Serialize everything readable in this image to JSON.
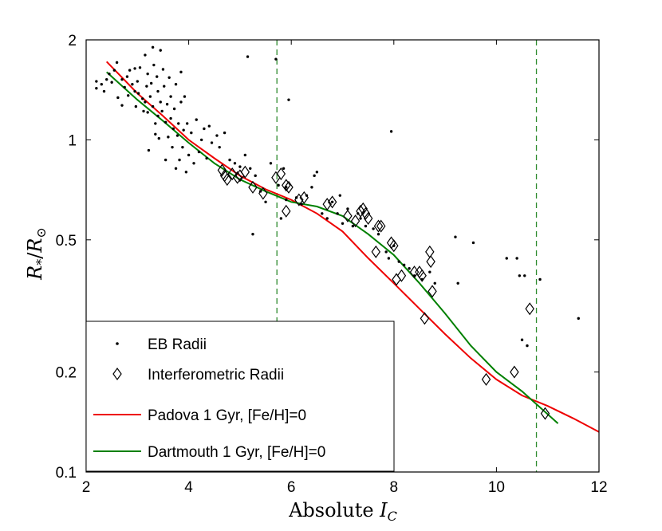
{
  "chart_data": {
    "type": "scatter",
    "xlabel": "Absolute I_C",
    "ylabel": "R_*/R_⊙",
    "xlim": [
      2,
      12
    ],
    "ylim": [
      0.1,
      2
    ],
    "yscale": "log",
    "x_ticks": [
      "2",
      "4",
      "6",
      "8",
      "10",
      "12"
    ],
    "y_ticks": [
      {
        "value": 0.1,
        "label": "0.1"
      },
      {
        "value": 0.2,
        "label": "0.2"
      },
      {
        "value": 0.5,
        "label": "0.5"
      },
      {
        "value": 1,
        "label": "1"
      },
      {
        "value": 2,
        "label": "2"
      }
    ],
    "vlines": [
      5.72,
      10.78
    ],
    "legend_position": "bottom-left",
    "series": [
      {
        "name": "EB Radii",
        "kind": "dots",
        "color": "#000000",
        "points": [
          [
            2.2,
            1.43
          ],
          [
            2.2,
            1.5
          ],
          [
            2.3,
            1.47
          ],
          [
            2.35,
            1.4
          ],
          [
            2.4,
            1.52
          ],
          [
            2.45,
            1.58
          ],
          [
            2.5,
            1.49
          ],
          [
            2.55,
            1.62
          ],
          [
            2.6,
            1.71
          ],
          [
            2.62,
            1.34
          ],
          [
            2.7,
            1.52
          ],
          [
            2.7,
            1.27
          ],
          [
            2.75,
            1.44
          ],
          [
            2.8,
            1.55
          ],
          [
            2.82,
            1.36
          ],
          [
            2.85,
            1.62
          ],
          [
            2.9,
            1.47
          ],
          [
            2.95,
            1.4
          ],
          [
            2.95,
            1.64
          ],
          [
            2.97,
            1.26
          ],
          [
            3.0,
            1.5
          ],
          [
            3.02,
            1.38
          ],
          [
            3.05,
            1.65
          ],
          [
            3.1,
            1.33
          ],
          [
            3.12,
            1.22
          ],
          [
            3.15,
            1.3
          ],
          [
            3.15,
            1.8
          ],
          [
            3.18,
            1.45
          ],
          [
            3.2,
            1.58
          ],
          [
            3.2,
            1.21
          ],
          [
            3.22,
            0.93
          ],
          [
            3.25,
            1.35
          ],
          [
            3.27,
            1.48
          ],
          [
            3.3,
            1.26
          ],
          [
            3.3,
            1.9
          ],
          [
            3.32,
            1.68
          ],
          [
            3.35,
            1.04
          ],
          [
            3.35,
            1.12
          ],
          [
            3.38,
            1.55
          ],
          [
            3.4,
            1.4
          ],
          [
            3.4,
            1.18
          ],
          [
            3.42,
            1.01
          ],
          [
            3.45,
            1.3
          ],
          [
            3.45,
            1.86
          ],
          [
            3.48,
            1.22
          ],
          [
            3.5,
            1.63
          ],
          [
            3.52,
            1.45
          ],
          [
            3.55,
            1.13
          ],
          [
            3.55,
            0.87
          ],
          [
            3.58,
            1.28
          ],
          [
            3.6,
            1.02
          ],
          [
            3.62,
            1.54
          ],
          [
            3.65,
            1.16
          ],
          [
            3.65,
            1.35
          ],
          [
            3.68,
            0.95
          ],
          [
            3.7,
            1.08
          ],
          [
            3.72,
            1.24
          ],
          [
            3.75,
            1.47
          ],
          [
            3.75,
            0.82
          ],
          [
            3.78,
            1.03
          ],
          [
            3.8,
            1.12
          ],
          [
            3.82,
            0.87
          ],
          [
            3.85,
            1.3
          ],
          [
            3.85,
            1.6
          ],
          [
            3.88,
            0.95
          ],
          [
            3.9,
            1.07
          ],
          [
            3.92,
            1.35
          ],
          [
            3.95,
            0.8
          ],
          [
            3.97,
            1.12
          ],
          [
            4.0,
            0.9
          ],
          [
            4.05,
            1.05
          ],
          [
            4.1,
            0.85
          ],
          [
            4.15,
            1.15
          ],
          [
            4.2,
            0.92
          ],
          [
            4.25,
            1.0
          ],
          [
            4.3,
            1.08
          ],
          [
            4.35,
            0.88
          ],
          [
            4.4,
            1.1
          ],
          [
            4.45,
            0.98
          ],
          [
            4.55,
            1.03
          ],
          [
            4.6,
            0.95
          ],
          [
            4.7,
            1.05
          ],
          [
            4.8,
            0.87
          ],
          [
            4.9,
            0.85
          ],
          [
            5.0,
            0.83
          ],
          [
            5.1,
            0.9
          ],
          [
            5.15,
            1.78
          ],
          [
            5.2,
            0.82
          ],
          [
            5.25,
            0.52
          ],
          [
            5.3,
            0.78
          ],
          [
            5.4,
            0.7
          ],
          [
            5.5,
            0.65
          ],
          [
            5.6,
            0.85
          ],
          [
            5.7,
            1.75
          ],
          [
            5.75,
            0.73
          ],
          [
            5.8,
            0.58
          ],
          [
            5.85,
            0.82
          ],
          [
            5.9,
            0.66
          ],
          [
            5.9,
            0.72
          ],
          [
            5.95,
            1.32
          ],
          [
            6.1,
            0.67
          ],
          [
            6.2,
            0.64
          ],
          [
            6.3,
            0.68
          ],
          [
            6.4,
            0.72
          ],
          [
            6.45,
            0.78
          ],
          [
            6.5,
            0.8
          ],
          [
            6.6,
            0.6
          ],
          [
            6.7,
            0.58
          ],
          [
            6.8,
            0.65
          ],
          [
            6.9,
            0.6
          ],
          [
            6.95,
            0.68
          ],
          [
            7.0,
            0.56
          ],
          [
            7.1,
            0.62
          ],
          [
            7.2,
            0.55
          ],
          [
            7.3,
            0.6
          ],
          [
            7.35,
            0.58
          ],
          [
            7.45,
            0.55
          ],
          [
            7.6,
            0.54
          ],
          [
            7.7,
            0.52
          ],
          [
            7.85,
            0.46
          ],
          [
            7.9,
            0.44
          ],
          [
            7.95,
            1.06
          ],
          [
            8.0,
            0.48
          ],
          [
            8.1,
            0.43
          ],
          [
            8.2,
            0.42
          ],
          [
            8.3,
            0.41
          ],
          [
            8.4,
            0.39
          ],
          [
            8.55,
            0.38
          ],
          [
            8.7,
            0.4
          ],
          [
            8.8,
            0.37
          ],
          [
            9.2,
            0.51
          ],
          [
            9.25,
            0.37
          ],
          [
            9.55,
            0.49
          ],
          [
            10.2,
            0.44
          ],
          [
            10.4,
            0.44
          ],
          [
            10.45,
            0.39
          ],
          [
            10.5,
            0.25
          ],
          [
            10.55,
            0.39
          ],
          [
            10.6,
            0.24
          ],
          [
            10.85,
            0.38
          ],
          [
            11.6,
            0.29
          ]
        ]
      },
      {
        "name": "Interferometric Radii",
        "kind": "diamonds",
        "color": "#000000",
        "points": [
          [
            4.65,
            0.81
          ],
          [
            4.7,
            0.78
          ],
          [
            4.75,
            0.76
          ],
          [
            4.85,
            0.79
          ],
          [
            4.95,
            0.77
          ],
          [
            5.0,
            0.78
          ],
          [
            5.1,
            0.8
          ],
          [
            5.25,
            0.72
          ],
          [
            5.45,
            0.69
          ],
          [
            5.7,
            0.77
          ],
          [
            5.8,
            0.79
          ],
          [
            5.9,
            0.73
          ],
          [
            5.95,
            0.72
          ],
          [
            5.9,
            0.61
          ],
          [
            6.15,
            0.66
          ],
          [
            6.25,
            0.67
          ],
          [
            6.7,
            0.64
          ],
          [
            6.8,
            0.65
          ],
          [
            7.1,
            0.59
          ],
          [
            7.25,
            0.57
          ],
          [
            7.35,
            0.61
          ],
          [
            7.4,
            0.62
          ],
          [
            7.45,
            0.6
          ],
          [
            7.5,
            0.58
          ],
          [
            7.7,
            0.55
          ],
          [
            7.75,
            0.55
          ],
          [
            7.65,
            0.46
          ],
          [
            7.95,
            0.49
          ],
          [
            8.0,
            0.48
          ],
          [
            8.05,
            0.38
          ],
          [
            8.15,
            0.39
          ],
          [
            8.4,
            0.4
          ],
          [
            8.5,
            0.4
          ],
          [
            8.55,
            0.39
          ],
          [
            8.7,
            0.46
          ],
          [
            8.72,
            0.43
          ],
          [
            8.75,
            0.35
          ],
          [
            8.6,
            0.29
          ],
          [
            9.8,
            0.19
          ],
          [
            10.35,
            0.2
          ],
          [
            10.65,
            0.31
          ],
          [
            10.95,
            0.15
          ]
        ]
      },
      {
        "name": "Padova 1 Gyr, [Fe/H]=0",
        "kind": "line",
        "color": "#ee0000",
        "points": [
          [
            2.4,
            1.72
          ],
          [
            3.0,
            1.38
          ],
          [
            3.5,
            1.18
          ],
          [
            4.0,
            1.0
          ],
          [
            4.5,
            0.88
          ],
          [
            5.0,
            0.78
          ],
          [
            5.5,
            0.71
          ],
          [
            6.0,
            0.66
          ],
          [
            6.5,
            0.6
          ],
          [
            7.0,
            0.53
          ],
          [
            7.5,
            0.44
          ],
          [
            8.0,
            0.37
          ],
          [
            8.5,
            0.31
          ],
          [
            9.0,
            0.26
          ],
          [
            9.5,
            0.22
          ],
          [
            10.0,
            0.19
          ],
          [
            10.5,
            0.17
          ],
          [
            11.0,
            0.158
          ],
          [
            11.5,
            0.145
          ],
          [
            12.0,
            0.132
          ]
        ]
      },
      {
        "name": "Dartmouth 1 Gyr, [Fe/H]=0",
        "kind": "line",
        "color": "#008000",
        "points": [
          [
            2.4,
            1.6
          ],
          [
            3.0,
            1.32
          ],
          [
            3.5,
            1.14
          ],
          [
            4.0,
            0.98
          ],
          [
            4.5,
            0.85
          ],
          [
            5.0,
            0.76
          ],
          [
            5.5,
            0.7
          ],
          [
            6.0,
            0.65
          ],
          [
            6.5,
            0.63
          ],
          [
            7.0,
            0.59
          ],
          [
            7.5,
            0.52
          ],
          [
            8.0,
            0.45
          ],
          [
            8.5,
            0.37
          ],
          [
            9.0,
            0.3
          ],
          [
            9.5,
            0.24
          ],
          [
            10.0,
            0.2
          ],
          [
            10.5,
            0.175
          ],
          [
            11.2,
            0.14
          ]
        ]
      }
    ]
  }
}
